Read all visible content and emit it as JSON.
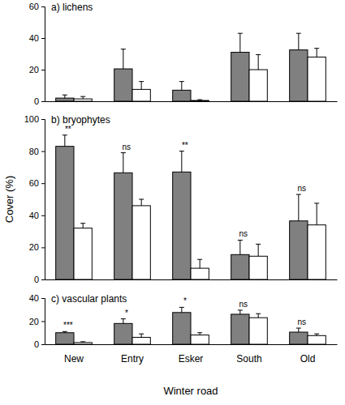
{
  "chart_data": [
    {
      "type": "bar",
      "title": "a) lichens",
      "categories": [
        "New",
        "Entry",
        "Esker",
        "South",
        "Old"
      ],
      "series": [
        {
          "color": "#808080",
          "values": [
            2,
            20.5,
            7,
            31,
            32.5
          ],
          "errors": [
            2,
            12.5,
            5.5,
            12,
            10.5
          ]
        },
        {
          "color": "#ffffff",
          "values": [
            1.5,
            7.5,
            0.5,
            20,
            28
          ],
          "errors": [
            1.5,
            5,
            0.5,
            9.5,
            5.5
          ]
        }
      ],
      "ylim": [
        0,
        60
      ],
      "yticks": [
        0,
        20,
        40,
        60
      ],
      "tick_labels": "y"
    },
    {
      "type": "bar",
      "title": "b) bryophytes",
      "categories": [
        "New",
        "Entry",
        "Esker",
        "South",
        "Old"
      ],
      "series": [
        {
          "color": "#808080",
          "values": [
            83,
            66.5,
            67,
            15.5,
            36.5
          ],
          "errors": [
            7,
            12.5,
            13,
            9,
            16.5
          ]
        },
        {
          "color": "#ffffff",
          "values": [
            32,
            46,
            7,
            14.5,
            34
          ],
          "errors": [
            3,
            4,
            5.5,
            7.5,
            13.5
          ]
        }
      ],
      "annotations": [
        "**",
        "ns",
        "**",
        "ns",
        "ns"
      ],
      "ylabel": "Cover (%)",
      "ylim": [
        0,
        100
      ],
      "yticks": [
        0,
        20,
        40,
        60,
        80,
        100
      ],
      "tick_labels": "y"
    },
    {
      "type": "bar",
      "title": "c) vascular plants",
      "categories": [
        "New",
        "Entry",
        "Esker",
        "South",
        "Old"
      ],
      "series": [
        {
          "color": "#808080",
          "values": [
            10,
            18,
            27.5,
            26,
            10.5
          ],
          "errors": [
            1,
            4,
            4.5,
            3.5,
            3.5
          ]
        },
        {
          "color": "#ffffff",
          "values": [
            1.5,
            6,
            8,
            23,
            7.5
          ],
          "errors": [
            0.7,
            3,
            2,
            3.5,
            1.5
          ]
        }
      ],
      "annotations": [
        "***",
        "*",
        "*",
        "ns",
        "ns"
      ],
      "xlabel": "Winter road",
      "ylim": [
        0,
        40
      ],
      "yticks": [
        0,
        20,
        40
      ]
    }
  ]
}
